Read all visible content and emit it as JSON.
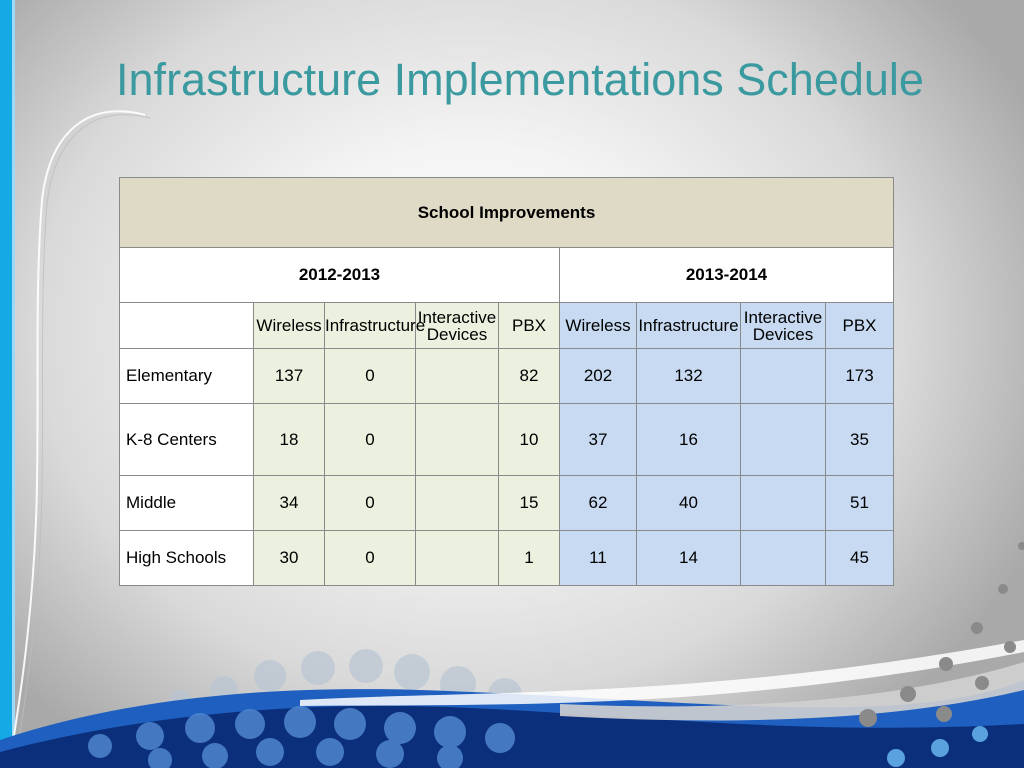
{
  "slide": {
    "title": "Infrastructure Implementations Schedule"
  },
  "table": {
    "heading": "School Improvements",
    "years": [
      "2012-2013",
      "2013-2014"
    ],
    "columns": [
      "Wireless",
      "Infrastructure",
      "Interactive Devices",
      "PBX"
    ],
    "rows": [
      {
        "label": "Elementary",
        "y1": [
          "137",
          "0",
          "",
          "82"
        ],
        "y2": [
          "202",
          "132",
          "",
          "173"
        ]
      },
      {
        "label": "K-8 Centers",
        "y1": [
          "18",
          "0",
          "",
          "10"
        ],
        "y2": [
          "37",
          "16",
          "",
          "35"
        ]
      },
      {
        "label": "Middle",
        "y1": [
          "34",
          "0",
          "",
          "15"
        ],
        "y2": [
          "62",
          "40",
          "",
          "51"
        ]
      },
      {
        "label": "High Schools",
        "y1": [
          "30",
          "0",
          "",
          "1"
        ],
        "y2": [
          "11",
          "14",
          "",
          "45"
        ]
      }
    ]
  },
  "colors": {
    "accent": "#15a9e6",
    "title": "#3b9a9f",
    "header_bg": "#dedac5",
    "year1_bg": "#ebf0df",
    "year2_bg": "#c7daf1",
    "wave_dark": "#0b2f7a"
  }
}
